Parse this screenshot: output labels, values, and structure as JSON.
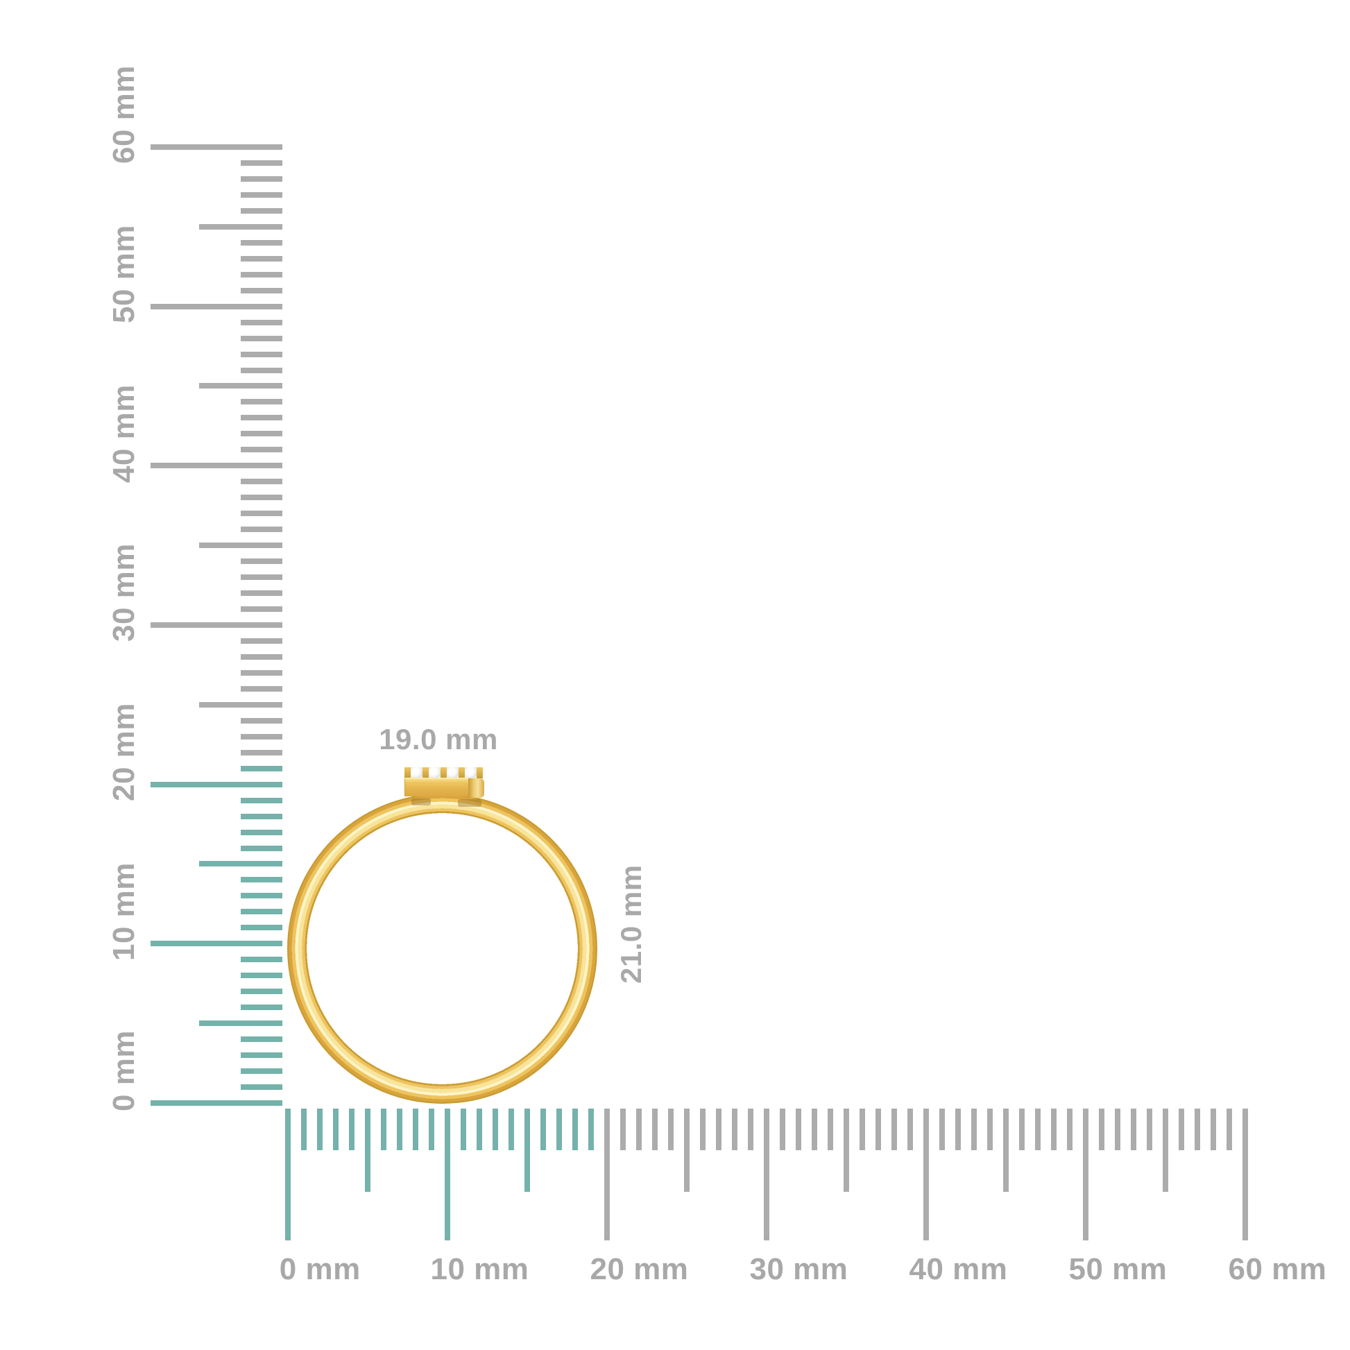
{
  "scene": {
    "background_color": "#ffffff",
    "description": "Side view of a thin gold ring with a diamond-set rectangular bar on top, measured against millimeter rulers"
  },
  "dimension_labels": {
    "width": "19.0 mm",
    "height": "21.0 mm",
    "color": "#a9a9a9"
  },
  "rulers": {
    "unit": "mm",
    "tick_color_measured": "#74b2ab",
    "tick_color_default": "#acacac",
    "label_color": "#a8a8a8",
    "vertical": {
      "min_mm": 0,
      "max_mm": 60,
      "measured_extent_mm": 21,
      "labels": [
        {
          "mm": 0,
          "text": "0 mm"
        },
        {
          "mm": 10,
          "text": "10 mm"
        },
        {
          "mm": 20,
          "text": "20 mm"
        },
        {
          "mm": 30,
          "text": "30 mm"
        },
        {
          "mm": 40,
          "text": "40 mm"
        },
        {
          "mm": 50,
          "text": "50 mm"
        },
        {
          "mm": 60,
          "text": "60 mm"
        }
      ]
    },
    "horizontal": {
      "min_mm": 0,
      "max_mm": 60,
      "measured_extent_mm": 19,
      "labels": [
        {
          "mm": 0,
          "text": "0 mm"
        },
        {
          "mm": 10,
          "text": "10 mm"
        },
        {
          "mm": 20,
          "text": "20 mm"
        },
        {
          "mm": 30,
          "text": "30 mm"
        },
        {
          "mm": 40,
          "text": "40 mm"
        },
        {
          "mm": 50,
          "text": "50 mm"
        },
        {
          "mm": 60,
          "text": "60 mm"
        }
      ]
    }
  },
  "ring": {
    "diamond_count": 4,
    "metal_color_light": "#fdf4c8",
    "metal_color_mid": "#eec45f",
    "metal_color_deep": "#d9a53b",
    "metal_color_edge": "#c79a33",
    "metal_color_inner_edge": "#cb9d35",
    "diamond_color": "#ffffff"
  }
}
